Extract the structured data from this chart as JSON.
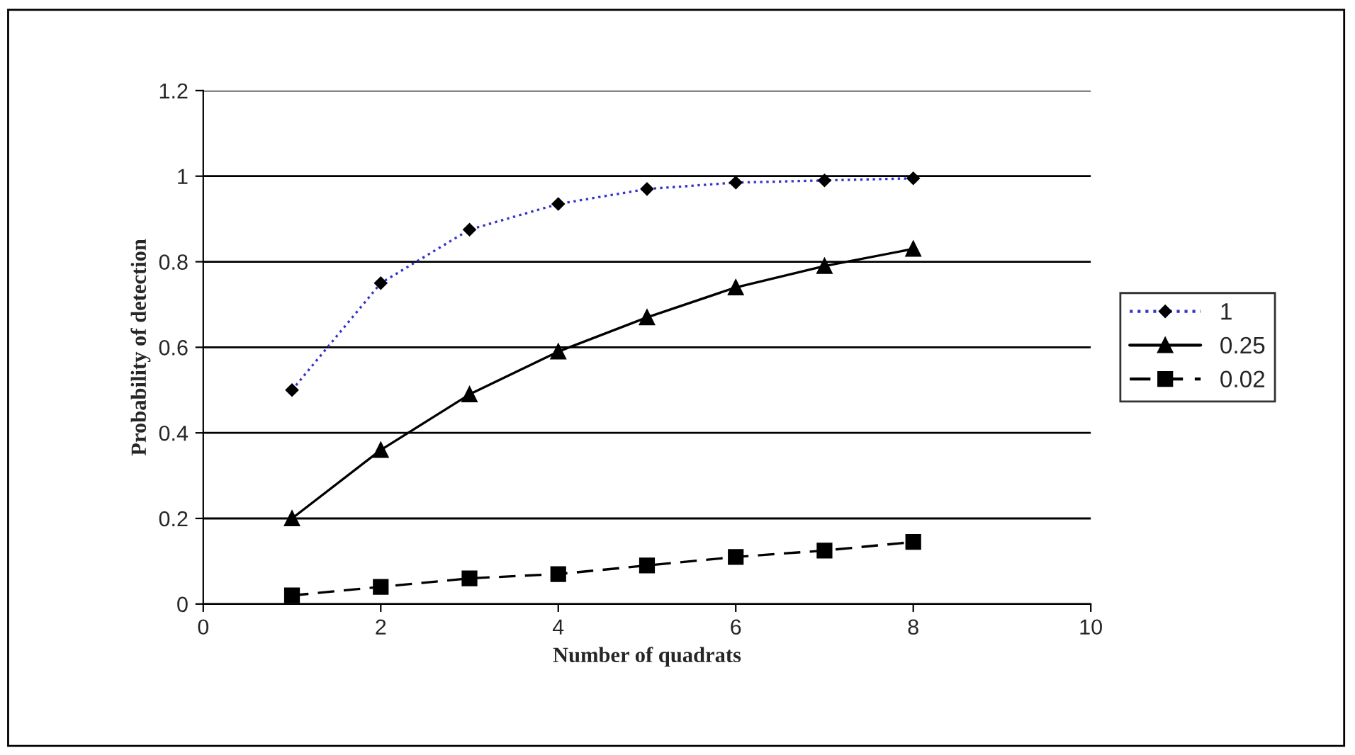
{
  "chart_data": {
    "type": "line",
    "xlabel": "Number of quadrats",
    "ylabel": "Probability of detection",
    "x": [
      1,
      2,
      3,
      4,
      5,
      6,
      7,
      8
    ],
    "series": [
      {
        "name": "1",
        "color": "#3333cc",
        "marker": "diamond",
        "line_style": "dotted",
        "values": [
          0.5,
          0.75,
          0.875,
          0.935,
          0.97,
          0.985,
          0.99,
          0.995
        ]
      },
      {
        "name": "0.25",
        "color": "#000000",
        "marker": "triangle",
        "line_style": "solid",
        "values": [
          0.2,
          0.36,
          0.49,
          0.59,
          0.67,
          0.74,
          0.79,
          0.83
        ]
      },
      {
        "name": "0.02",
        "color": "#000000",
        "marker": "square",
        "line_style": "dashed",
        "values": [
          0.02,
          0.04,
          0.06,
          0.07,
          0.09,
          0.11,
          0.125,
          0.145
        ]
      }
    ],
    "xlim": [
      0,
      10
    ],
    "xticks": [
      0,
      2,
      4,
      6,
      8,
      10
    ],
    "ylim": [
      0,
      1.2
    ],
    "yticks": [
      0,
      0.2,
      0.4,
      0.6,
      0.8,
      1,
      1.2
    ],
    "grid": "y",
    "legend": "right"
  }
}
